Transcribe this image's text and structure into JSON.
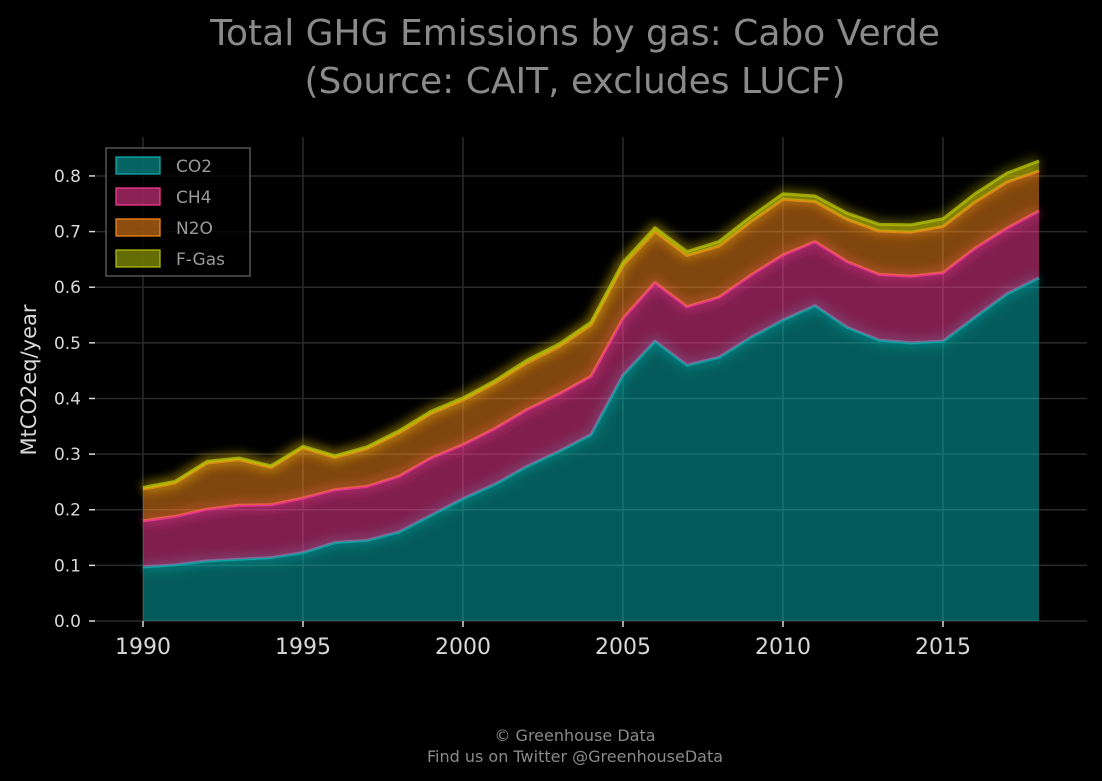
{
  "chart_data": {
    "type": "area",
    "stacked": true,
    "title_lines": [
      "Total GHG Emissions by gas: Cabo Verde",
      "(Source: CAIT, excludes LUCF)"
    ],
    "xlabel": "",
    "ylabel": "MtCO2eq/year",
    "xlim": [
      1988.5,
      2019.5
    ],
    "ylim": [
      0,
      0.87
    ],
    "x_ticks": [
      1990,
      1995,
      2000,
      2005,
      2010,
      2015
    ],
    "y_ticks": [
      0.0,
      0.1,
      0.2,
      0.3,
      0.4,
      0.5,
      0.6,
      0.7,
      0.8
    ],
    "y_tick_labels": [
      "0.0",
      "0.1",
      "0.2",
      "0.3",
      "0.4",
      "0.5",
      "0.6",
      "0.7",
      "0.8"
    ],
    "grid": true,
    "legend_position": "top-left",
    "x": [
      1990,
      1991,
      1992,
      1993,
      1994,
      1995,
      1996,
      1997,
      1998,
      1999,
      2000,
      2001,
      2002,
      2003,
      2004,
      2005,
      2006,
      2007,
      2008,
      2009,
      2010,
      2011,
      2012,
      2013,
      2014,
      2015,
      2016,
      2017,
      2018
    ],
    "series": [
      {
        "name": "CO2",
        "color": "#0ab5b5",
        "values": [
          0.097,
          0.101,
          0.108,
          0.111,
          0.114,
          0.123,
          0.141,
          0.145,
          0.16,
          0.19,
          0.22,
          0.246,
          0.278,
          0.305,
          0.335,
          0.442,
          0.503,
          0.46,
          0.474,
          0.51,
          0.541,
          0.567,
          0.528,
          0.505,
          0.5,
          0.503,
          0.546,
          0.588,
          0.617
        ]
      },
      {
        "name": "CH4",
        "color": "#ff3d9a",
        "values": [
          0.083,
          0.087,
          0.093,
          0.097,
          0.095,
          0.098,
          0.095,
          0.097,
          0.1,
          0.103,
          0.097,
          0.1,
          0.102,
          0.103,
          0.105,
          0.102,
          0.105,
          0.105,
          0.108,
          0.112,
          0.117,
          0.115,
          0.118,
          0.118,
          0.12,
          0.123,
          0.124,
          0.118,
          0.12
        ]
      },
      {
        "name": "N2O",
        "color": "#ff8c1a",
        "values": [
          0.057,
          0.06,
          0.083,
          0.082,
          0.067,
          0.09,
          0.058,
          0.068,
          0.078,
          0.08,
          0.08,
          0.082,
          0.084,
          0.085,
          0.092,
          0.095,
          0.092,
          0.092,
          0.092,
          0.096,
          0.1,
          0.072,
          0.076,
          0.078,
          0.079,
          0.083,
          0.083,
          0.083,
          0.072
        ]
      },
      {
        "name": "F-Gas",
        "color": "#b7c40a",
        "values": [
          0.003,
          0.003,
          0.003,
          0.003,
          0.003,
          0.003,
          0.003,
          0.003,
          0.004,
          0.004,
          0.004,
          0.004,
          0.005,
          0.005,
          0.005,
          0.006,
          0.007,
          0.007,
          0.008,
          0.009,
          0.01,
          0.01,
          0.011,
          0.012,
          0.013,
          0.014,
          0.015,
          0.016,
          0.018
        ]
      }
    ]
  },
  "footer": {
    "line1": "© Greenhouse Data",
    "line2": "Find us on Twitter @GreenhouseData"
  }
}
